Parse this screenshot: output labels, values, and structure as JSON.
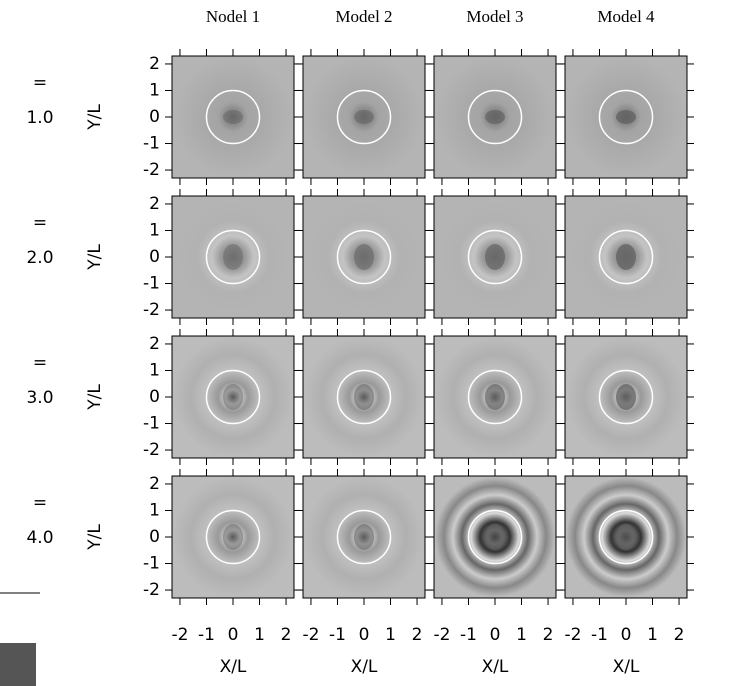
{
  "chart_data": {
    "type": "image-grid",
    "columns": [
      "Nodel 1",
      "Model 2",
      "Model 3",
      "Model 4"
    ],
    "rows": [
      {
        "sign": "=",
        "value": "1.0"
      },
      {
        "sign": "=",
        "value": "2.0"
      },
      {
        "sign": "=",
        "value": "3.0"
      },
      {
        "sign": "=",
        "value": "4.0"
      }
    ],
    "xlabel": "X/L",
    "ylabel": "Y/L",
    "xlim": [
      -2.3,
      2.3
    ],
    "ylim": [
      -2.3,
      2.3
    ],
    "xticks": [
      -2,
      -1,
      0,
      1,
      2
    ],
    "yticks": [
      -2,
      -1,
      0,
      1,
      2
    ]
  }
}
